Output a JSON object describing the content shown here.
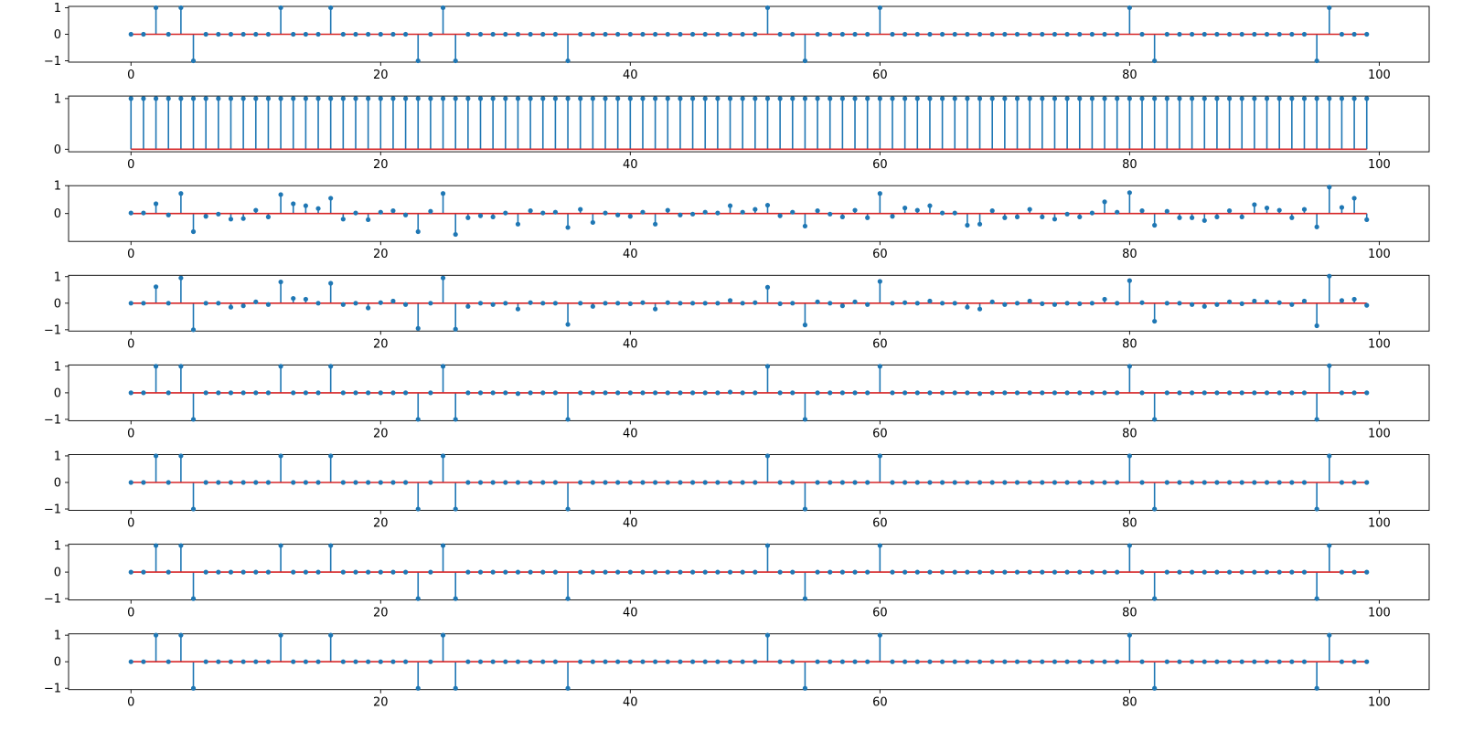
{
  "figure": {
    "panel_count": 8,
    "colors": {
      "stem": "#1f77b4",
      "baseline": "#d62728",
      "axes": "#000000"
    }
  },
  "chart_data": [
    {
      "type": "stem",
      "x_range": [
        0,
        99
      ],
      "xlim": [
        -5,
        104
      ],
      "ylim": [
        -1.05,
        1.05
      ],
      "xticks": [
        0,
        20,
        40,
        60,
        80,
        100
      ],
      "yticks": [
        -1,
        0,
        1
      ],
      "baseline": 0,
      "grid": false,
      "values": [
        0,
        0,
        1,
        0,
        1,
        -1,
        0,
        0,
        0,
        0,
        0,
        0,
        1,
        0,
        0,
        0,
        1,
        0,
        0,
        0,
        0,
        0,
        0,
        -1,
        0,
        1,
        -1,
        0,
        0,
        0,
        0,
        0,
        0,
        0,
        0,
        -1,
        0,
        0,
        0,
        0,
        0,
        0,
        0,
        0,
        0,
        0,
        0,
        0,
        0,
        0,
        0,
        1,
        0,
        0,
        -1,
        0,
        0,
        0,
        0,
        0,
        1,
        0,
        0,
        0,
        0,
        0,
        0,
        0,
        0,
        0,
        0,
        0,
        0,
        0,
        0,
        0,
        0,
        0,
        0,
        0,
        1,
        0,
        -1,
        0,
        0,
        0,
        0,
        0,
        0,
        0,
        0,
        0,
        0,
        0,
        0,
        -1,
        1,
        0,
        0,
        0
      ]
    },
    {
      "type": "stem",
      "x_range": [
        0,
        99
      ],
      "xlim": [
        -5,
        104
      ],
      "ylim": [
        -0.05,
        1.05
      ],
      "xticks": [
        0,
        20,
        40,
        60,
        80,
        100
      ],
      "yticks": [
        0,
        1
      ],
      "baseline": 0,
      "grid": false,
      "values": [
        1,
        1,
        1,
        1,
        1,
        1,
        1,
        1,
        1,
        1,
        1,
        1,
        1,
        1,
        1,
        1,
        1,
        1,
        1,
        1,
        1,
        1,
        1,
        1,
        1,
        1,
        1,
        1,
        1,
        1,
        1,
        1,
        1,
        1,
        1,
        1,
        1,
        1,
        1,
        1,
        1,
        1,
        1,
        1,
        1,
        1,
        1,
        1,
        1,
        1,
        1,
        1,
        1,
        1,
        1,
        1,
        1,
        1,
        1,
        1,
        1,
        1,
        1,
        1,
        1,
        1,
        1,
        1,
        1,
        1,
        1,
        1,
        1,
        1,
        1,
        1,
        1,
        1,
        1,
        1,
        1,
        1,
        1,
        1,
        1,
        1,
        1,
        1,
        1,
        1,
        1,
        1,
        1,
        1,
        1,
        1,
        1,
        1,
        1,
        1
      ]
    },
    {
      "type": "stem",
      "x_range": [
        0,
        99
      ],
      "xlim": [
        -5,
        104
      ],
      "ylim": [
        -1.0,
        1.0
      ],
      "xticks": [
        0,
        20,
        40,
        60,
        80,
        100
      ],
      "yticks": [
        0,
        1
      ],
      "baseline": 0,
      "grid": false,
      "values": [
        0.02,
        0.02,
        0.35,
        -0.05,
        0.72,
        -0.65,
        -0.1,
        -0.02,
        -0.2,
        -0.18,
        0.12,
        -0.12,
        0.68,
        0.35,
        0.28,
        0.18,
        0.55,
        -0.2,
        0.02,
        -0.22,
        0.05,
        0.1,
        -0.05,
        -0.65,
        0.08,
        0.72,
        -0.75,
        -0.15,
        -0.08,
        -0.12,
        0.02,
        -0.38,
        0.1,
        0.02,
        0.05,
        -0.5,
        0.15,
        -0.32,
        0.02,
        -0.05,
        -0.1,
        0.05,
        -0.38,
        0.12,
        -0.05,
        -0.02,
        0.05,
        0.02,
        0.28,
        0.05,
        0.15,
        0.3,
        -0.08,
        0.05,
        -0.45,
        0.1,
        -0.02,
        -0.12,
        0.12,
        -0.15,
        0.72,
        -0.1,
        0.2,
        0.12,
        0.28,
        0.02,
        0.02,
        -0.42,
        -0.38,
        0.1,
        -0.15,
        -0.12,
        0.15,
        -0.12,
        -0.2,
        -0.02,
        -0.12,
        0.02,
        0.42,
        0.05,
        0.75,
        0.1,
        -0.42,
        0.08,
        -0.15,
        -0.15,
        -0.25,
        -0.12,
        0.1,
        -0.12,
        0.32,
        0.2,
        0.12,
        -0.15,
        0.15,
        -0.48,
        0.95,
        0.22,
        0.55,
        -0.22
      ]
    },
    {
      "type": "stem",
      "x_range": [
        0,
        99
      ],
      "xlim": [
        -5,
        104
      ],
      "ylim": [
        -1.05,
        1.05
      ],
      "xticks": [
        0,
        20,
        40,
        60,
        80,
        100
      ],
      "yticks": [
        -1,
        0,
        1
      ],
      "baseline": 0,
      "grid": false,
      "values": [
        0,
        0,
        0.62,
        0,
        0.95,
        -1,
        0,
        0,
        -0.15,
        -0.1,
        0.05,
        -0.05,
        0.8,
        0.18,
        0.15,
        0,
        0.75,
        -0.05,
        0,
        -0.18,
        0.02,
        0.08,
        -0.05,
        -0.95,
        0,
        0.95,
        -0.98,
        -0.12,
        0,
        -0.05,
        0,
        -0.22,
        0.02,
        0,
        0,
        -0.8,
        0,
        -0.12,
        0,
        0,
        -0.02,
        0.02,
        -0.22,
        0.02,
        0,
        0,
        0,
        0,
        0.1,
        0,
        0.02,
        0.6,
        -0.02,
        0,
        -0.82,
        0.05,
        0,
        -0.1,
        0.05,
        -0.05,
        0.82,
        0,
        0.02,
        0,
        0.08,
        0,
        0,
        -0.15,
        -0.22,
        0.05,
        -0.05,
        0,
        0.08,
        -0.02,
        -0.05,
        0,
        -0.02,
        0,
        0.15,
        0,
        0.85,
        0.02,
        -0.68,
        0,
        0,
        -0.05,
        -0.12,
        -0.05,
        0.05,
        -0.02,
        0.08,
        0.05,
        0.02,
        -0.05,
        0.08,
        -0.85,
        1.02,
        0.1,
        0.15,
        -0.08
      ]
    },
    {
      "type": "stem",
      "x_range": [
        0,
        99
      ],
      "xlim": [
        -5,
        104
      ],
      "ylim": [
        -1.05,
        1.05
      ],
      "xticks": [
        0,
        20,
        40,
        60,
        80,
        100
      ],
      "yticks": [
        -1,
        0,
        1
      ],
      "baseline": 0,
      "grid": false,
      "values": [
        0,
        0,
        1,
        0,
        1,
        -1,
        0,
        0,
        0,
        0,
        0,
        0,
        1,
        0,
        0,
        0,
        1,
        0,
        0,
        0,
        0,
        0,
        0,
        -1,
        0,
        1,
        -1,
        0,
        0,
        0,
        0,
        -0.03,
        0,
        0,
        0,
        -1,
        0,
        0,
        0,
        0,
        0,
        0,
        0,
        0,
        0,
        0,
        0,
        0,
        0.03,
        0,
        0,
        1,
        0,
        0,
        -1,
        0,
        0,
        0,
        0,
        0,
        1,
        0,
        0,
        0,
        0,
        0,
        0,
        0,
        -0.03,
        0,
        0,
        0,
        0,
        0,
        0,
        0,
        0,
        0,
        0,
        0,
        1,
        0,
        -1,
        0,
        0,
        0,
        0,
        0,
        0,
        0,
        0,
        0,
        0,
        0,
        0,
        -1,
        1.02,
        0,
        0,
        0
      ]
    },
    {
      "type": "stem",
      "x_range": [
        0,
        99
      ],
      "xlim": [
        -5,
        104
      ],
      "ylim": [
        -1.05,
        1.05
      ],
      "xticks": [
        0,
        20,
        40,
        60,
        80,
        100
      ],
      "yticks": [
        -1,
        0,
        1
      ],
      "baseline": 0,
      "grid": false,
      "values": [
        0,
        0,
        1,
        0,
        1,
        -1,
        0,
        0,
        0,
        0,
        0,
        0,
        1,
        0,
        0,
        0,
        1,
        0,
        0,
        0,
        0,
        0,
        0,
        -1,
        0,
        1,
        -1,
        0,
        0,
        0,
        0,
        0,
        0,
        0,
        0,
        -1,
        0,
        0,
        0,
        0,
        0,
        0,
        0,
        0,
        0,
        0,
        0,
        0,
        0,
        0,
        0,
        1,
        0,
        0,
        -1,
        0,
        0,
        0,
        0,
        0,
        1,
        0,
        0,
        0,
        0,
        0,
        0,
        0,
        0,
        0,
        0,
        0,
        0,
        0,
        0,
        0,
        0,
        0,
        0,
        0,
        1,
        0,
        -1,
        0,
        0,
        0,
        0,
        0,
        0,
        0,
        0,
        0,
        0,
        0,
        0,
        -1,
        1,
        0,
        0,
        0
      ]
    },
    {
      "type": "stem",
      "x_range": [
        0,
        99
      ],
      "xlim": [
        -5,
        104
      ],
      "ylim": [
        -1.05,
        1.05
      ],
      "xticks": [
        0,
        20,
        40,
        60,
        80,
        100
      ],
      "yticks": [
        -1,
        0,
        1
      ],
      "baseline": 0,
      "grid": false,
      "values": [
        0,
        0,
        1,
        0,
        1,
        -1,
        0,
        0,
        0,
        0,
        0,
        0,
        1,
        0,
        0,
        0,
        1,
        0,
        0,
        0,
        0,
        0,
        0,
        -1,
        0,
        1,
        -1,
        0,
        0,
        0,
        0,
        0,
        0,
        0,
        0,
        -1,
        0,
        0,
        0,
        0,
        0,
        0,
        0,
        0,
        0,
        0,
        0,
        0,
        0,
        0,
        0,
        1,
        0,
        0,
        -1,
        0,
        0,
        0,
        0,
        0,
        1,
        0,
        0,
        0,
        0,
        0,
        0,
        0,
        0,
        0,
        0,
        0,
        0,
        0,
        0,
        0,
        0,
        0,
        0,
        0,
        1,
        0,
        -1,
        0,
        0,
        0,
        0,
        0,
        0,
        0,
        0,
        0,
        0,
        0,
        0,
        -1,
        1,
        0,
        0,
        0
      ]
    },
    {
      "type": "stem",
      "x_range": [
        0,
        99
      ],
      "xlim": [
        -5,
        104
      ],
      "ylim": [
        -1.05,
        1.05
      ],
      "xticks": [
        0,
        20,
        40,
        60,
        80,
        100
      ],
      "yticks": [
        -1,
        0,
        1
      ],
      "baseline": 0,
      "grid": false,
      "values": [
        0,
        0,
        1,
        0,
        1,
        -1,
        0,
        0,
        0,
        0,
        0,
        0,
        1,
        0,
        0,
        0,
        1,
        0,
        0,
        0,
        0,
        0,
        0,
        -1,
        0,
        1,
        -1,
        0,
        0,
        0,
        0,
        0,
        0,
        0,
        0,
        -1,
        0,
        0,
        0,
        0,
        0,
        0,
        0,
        0,
        0,
        0,
        0,
        0,
        0,
        0,
        0,
        1,
        0,
        0,
        -1,
        0,
        0,
        0,
        0,
        0,
        1,
        0,
        0,
        0,
        0,
        0,
        0,
        0,
        0,
        0,
        0,
        0,
        0,
        0,
        0,
        0,
        0,
        0,
        0,
        0,
        1,
        0,
        -1,
        0,
        0,
        0,
        0,
        0,
        0,
        0,
        0,
        0,
        0,
        0,
        0,
        -1,
        1,
        0,
        0,
        0
      ]
    }
  ]
}
